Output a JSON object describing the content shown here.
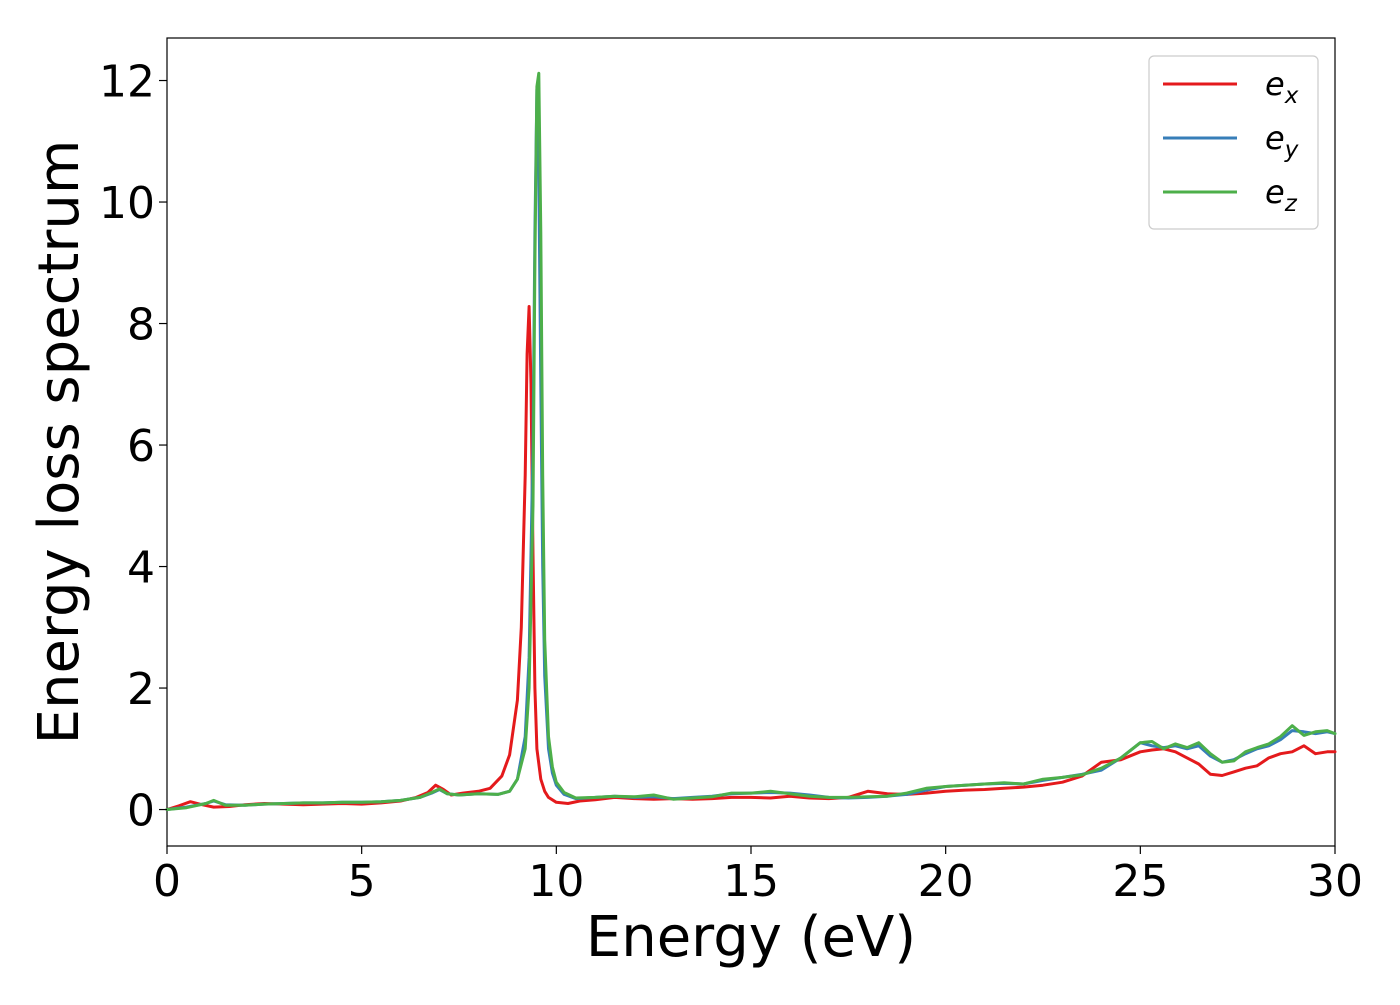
{
  "chart_data": {
    "type": "line",
    "title": "",
    "xlabel": "Energy (eV)",
    "ylabel": "Energy loss spectrum",
    "xlim": [
      0,
      30
    ],
    "ylim": [
      -0.6,
      12.7
    ],
    "xticks": [
      0,
      5,
      10,
      15,
      20,
      25,
      30
    ],
    "yticks": [
      0,
      2,
      4,
      6,
      8,
      10,
      12
    ],
    "grid": false,
    "legend": {
      "position": "top-right",
      "entries": [
        {
          "base": "e",
          "sub": "x",
          "color": "#e41a1c"
        },
        {
          "base": "e",
          "sub": "y",
          "color": "#377eb8"
        },
        {
          "base": "e",
          "sub": "z",
          "color": "#4daf4a"
        }
      ]
    },
    "series": [
      {
        "name": "e_x",
        "color": "#e41a1c",
        "x": [
          0,
          0.3,
          0.6,
          0.9,
          1.2,
          1.6,
          2.0,
          2.5,
          3.0,
          3.5,
          4.0,
          4.5,
          5.0,
          5.5,
          6.0,
          6.4,
          6.7,
          6.9,
          7.1,
          7.3,
          7.6,
          8.0,
          8.3,
          8.6,
          8.8,
          9.0,
          9.1,
          9.2,
          9.25,
          9.3,
          9.35,
          9.4,
          9.45,
          9.5,
          9.6,
          9.7,
          9.8,
          10.0,
          10.3,
          10.6,
          11.0,
          11.5,
          12.0,
          12.5,
          13.0,
          13.5,
          14.0,
          14.5,
          15.0,
          15.5,
          16.0,
          16.5,
          17.0,
          17.5,
          18.0,
          18.5,
          19.0,
          19.5,
          20.0,
          20.5,
          21.0,
          21.5,
          22.0,
          22.5,
          23.0,
          23.5,
          24.0,
          24.5,
          25.0,
          25.3,
          25.6,
          25.9,
          26.2,
          26.5,
          26.8,
          27.1,
          27.4,
          27.7,
          28.0,
          28.3,
          28.6,
          28.9,
          29.2,
          29.5,
          29.8,
          30.0
        ],
        "y": [
          0.0,
          0.06,
          0.13,
          0.08,
          0.04,
          0.05,
          0.08,
          0.1,
          0.09,
          0.08,
          0.09,
          0.1,
          0.09,
          0.11,
          0.14,
          0.2,
          0.28,
          0.4,
          0.33,
          0.24,
          0.27,
          0.3,
          0.35,
          0.55,
          0.9,
          1.8,
          3.0,
          5.5,
          7.5,
          8.28,
          7.0,
          4.2,
          2.0,
          1.0,
          0.5,
          0.3,
          0.2,
          0.12,
          0.1,
          0.14,
          0.16,
          0.2,
          0.18,
          0.17,
          0.18,
          0.17,
          0.18,
          0.2,
          0.2,
          0.19,
          0.22,
          0.19,
          0.18,
          0.2,
          0.3,
          0.26,
          0.25,
          0.27,
          0.3,
          0.32,
          0.33,
          0.35,
          0.37,
          0.4,
          0.45,
          0.55,
          0.78,
          0.82,
          0.95,
          0.98,
          1.0,
          0.95,
          0.85,
          0.75,
          0.58,
          0.56,
          0.62,
          0.68,
          0.72,
          0.85,
          0.92,
          0.95,
          1.05,
          0.92,
          0.95,
          0.95
        ]
      },
      {
        "name": "e_y",
        "color": "#377eb8",
        "x": [
          0,
          0.5,
          1.0,
          1.2,
          1.5,
          2.0,
          2.5,
          3.0,
          3.5,
          4.0,
          4.5,
          5.0,
          5.5,
          6.0,
          6.5,
          6.8,
          7.0,
          7.2,
          7.5,
          8.0,
          8.5,
          8.8,
          9.0,
          9.2,
          9.3,
          9.4,
          9.45,
          9.5,
          9.55,
          9.6,
          9.65,
          9.7,
          9.8,
          9.9,
          10.0,
          10.2,
          10.5,
          11.0,
          11.5,
          12.0,
          12.5,
          13.0,
          13.5,
          14.0,
          14.5,
          15.0,
          15.5,
          16.0,
          16.5,
          17.0,
          17.5,
          18.0,
          18.5,
          19.0,
          19.5,
          20.0,
          20.5,
          21.0,
          21.5,
          22.0,
          22.5,
          23.0,
          23.5,
          24.0,
          24.5,
          25.0,
          25.3,
          25.6,
          25.9,
          26.2,
          26.5,
          26.8,
          27.1,
          27.4,
          27.7,
          28.0,
          28.3,
          28.6,
          28.9,
          29.2,
          29.5,
          29.8,
          30.0
        ],
        "y": [
          0.0,
          0.04,
          0.1,
          0.14,
          0.08,
          0.07,
          0.09,
          0.1,
          0.11,
          0.11,
          0.12,
          0.12,
          0.13,
          0.15,
          0.2,
          0.27,
          0.33,
          0.26,
          0.24,
          0.26,
          0.25,
          0.3,
          0.5,
          1.2,
          2.5,
          6.0,
          9.5,
          11.85,
          10.5,
          7.0,
          4.0,
          2.2,
          1.0,
          0.6,
          0.4,
          0.25,
          0.18,
          0.2,
          0.22,
          0.2,
          0.21,
          0.18,
          0.2,
          0.22,
          0.26,
          0.27,
          0.28,
          0.27,
          0.24,
          0.2,
          0.19,
          0.2,
          0.22,
          0.25,
          0.32,
          0.38,
          0.4,
          0.42,
          0.43,
          0.42,
          0.48,
          0.53,
          0.58,
          0.65,
          0.85,
          1.1,
          1.05,
          1.02,
          1.05,
          1.0,
          1.05,
          0.88,
          0.78,
          0.82,
          0.92,
          1.0,
          1.05,
          1.15,
          1.3,
          1.28,
          1.25,
          1.28,
          1.25
        ]
      },
      {
        "name": "e_z",
        "color": "#4daf4a",
        "x": [
          0,
          0.5,
          1.0,
          1.2,
          1.5,
          2.0,
          2.5,
          3.0,
          3.5,
          4.0,
          4.5,
          5.0,
          5.5,
          6.0,
          6.5,
          6.8,
          7.0,
          7.2,
          7.5,
          8.0,
          8.5,
          8.8,
          9.0,
          9.2,
          9.3,
          9.4,
          9.45,
          9.5,
          9.55,
          9.6,
          9.65,
          9.7,
          9.8,
          9.9,
          10.0,
          10.2,
          10.5,
          11.0,
          11.5,
          12.0,
          12.5,
          13.0,
          13.5,
          14.0,
          14.5,
          15.0,
          15.5,
          16.0,
          16.5,
          17.0,
          17.5,
          18.0,
          18.5,
          19.0,
          19.5,
          20.0,
          20.5,
          21.0,
          21.5,
          22.0,
          22.5,
          23.0,
          23.5,
          24.0,
          24.5,
          25.0,
          25.3,
          25.6,
          25.9,
          26.2,
          26.5,
          26.8,
          27.1,
          27.4,
          27.7,
          28.0,
          28.3,
          28.6,
          28.9,
          29.2,
          29.5,
          29.8,
          30.0
        ],
        "y": [
          0.0,
          0.03,
          0.1,
          0.15,
          0.07,
          0.07,
          0.09,
          0.1,
          0.11,
          0.11,
          0.12,
          0.12,
          0.13,
          0.15,
          0.2,
          0.28,
          0.34,
          0.26,
          0.24,
          0.26,
          0.25,
          0.3,
          0.5,
          1.0,
          2.0,
          5.0,
          9.0,
          11.9,
          12.12,
          9.5,
          5.5,
          2.8,
          1.2,
          0.7,
          0.45,
          0.28,
          0.19,
          0.2,
          0.22,
          0.21,
          0.24,
          0.17,
          0.19,
          0.21,
          0.27,
          0.27,
          0.3,
          0.26,
          0.22,
          0.2,
          0.2,
          0.21,
          0.22,
          0.27,
          0.35,
          0.38,
          0.4,
          0.42,
          0.44,
          0.42,
          0.5,
          0.53,
          0.57,
          0.68,
          0.85,
          1.1,
          1.12,
          1.0,
          1.08,
          1.02,
          1.1,
          0.92,
          0.78,
          0.8,
          0.95,
          1.02,
          1.08,
          1.2,
          1.38,
          1.22,
          1.28,
          1.3,
          1.25
        ]
      }
    ]
  }
}
